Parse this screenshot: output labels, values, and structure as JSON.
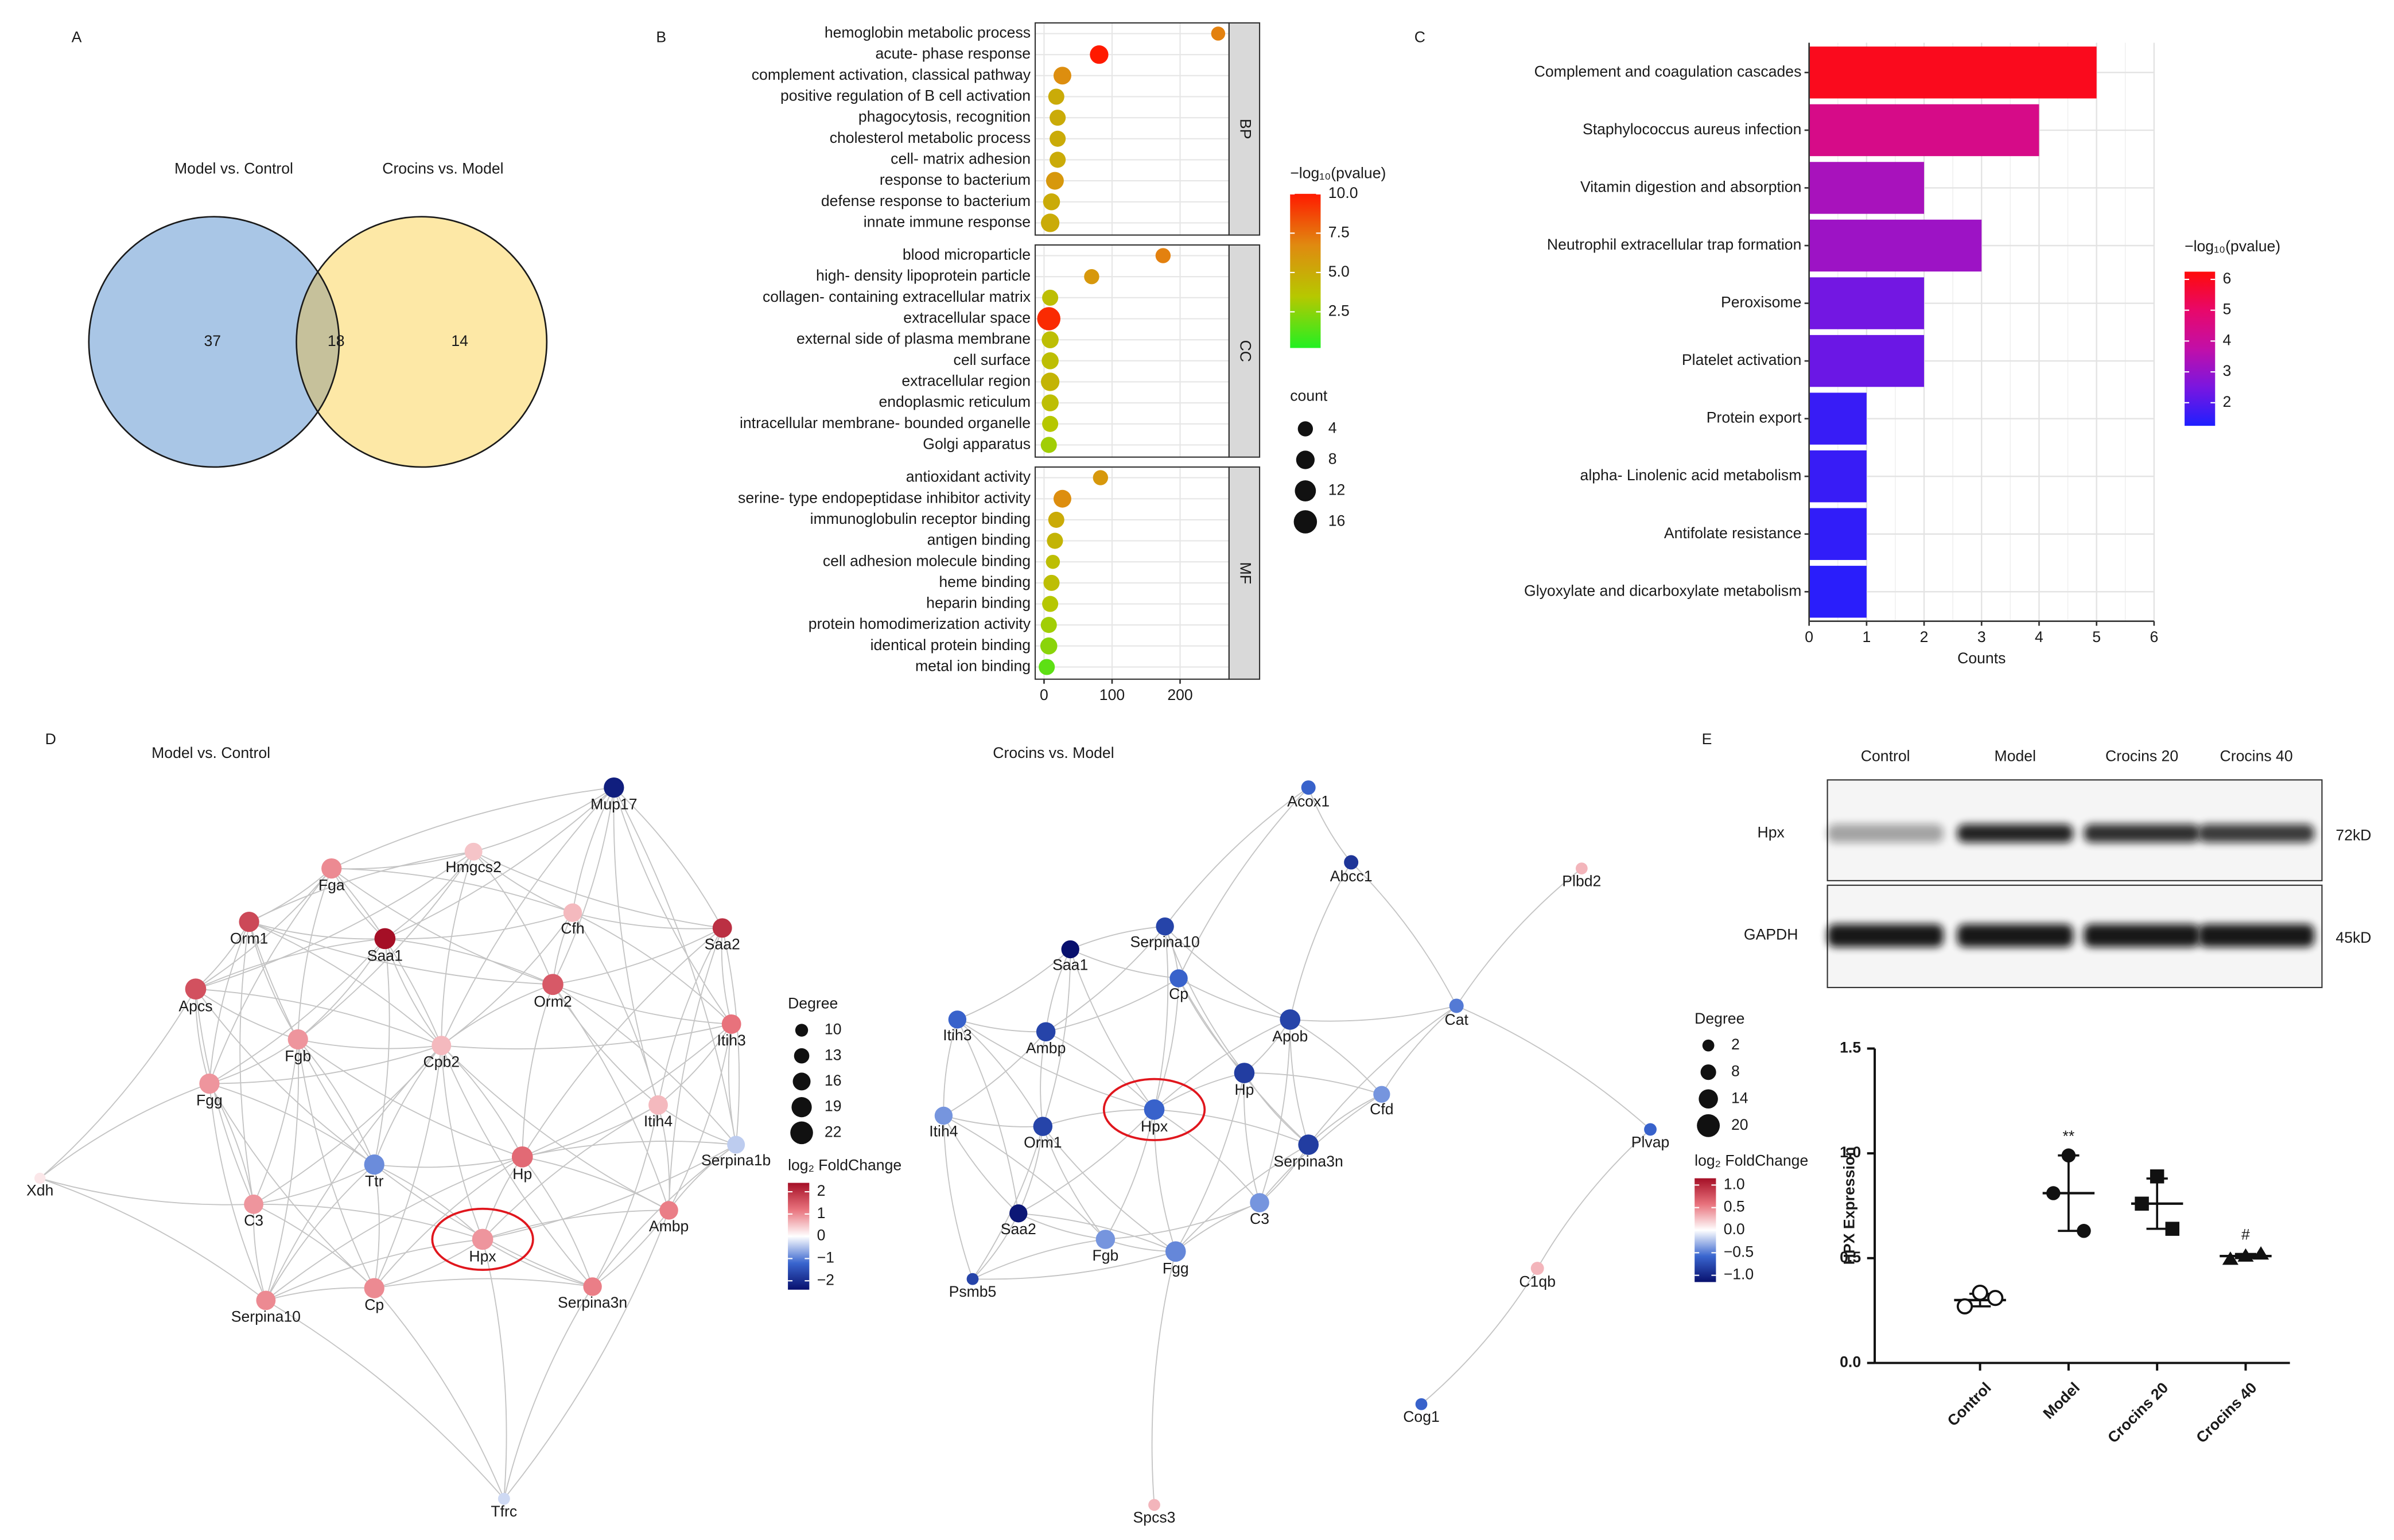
{
  "chart_data": [
    {
      "type": "venn",
      "panel": "A",
      "sets": [
        {
          "name": "Model vs. Control",
          "color": "#a9c6e6"
        },
        {
          "name": "Crocins vs. Model",
          "color": "#fde8a6"
        }
      ],
      "overlap_color": "#c6c19b",
      "values": [
        37,
        18,
        14
      ]
    },
    {
      "type": "dot",
      "panel": "B",
      "facets": [
        {
          "name": "BP",
          "categories": [
            "hemoglobin metabolic process",
            "acute- phase response",
            "complement activation, classical pathway",
            "positive regulation of B cell activation",
            "phagocytosis, recognition",
            "cholesterol metabolic process",
            "cell- matrix adhesion",
            "response to bacterium",
            "defense response to bacterium",
            "innate immune response"
          ],
          "values": [
            256,
            81,
            27,
            18,
            20,
            20,
            20,
            16,
            11,
            9
          ],
          "pvalue": [
            7,
            10,
            6.5,
            5,
            5,
            5,
            5,
            6,
            5,
            5
          ],
          "count": [
            3,
            8,
            7,
            5,
            5,
            5,
            5,
            7,
            6,
            8
          ]
        },
        {
          "name": "CC",
          "categories": [
            "blood microparticle",
            "high- density lipoprotein particle",
            "collagen- containing extracellular matrix",
            "extracellular space",
            "external side of plasma membrane",
            "cell surface",
            "extracellular region",
            "endoplasmic reticulum",
            "intracellular membrane- bounded organelle",
            "Golgi apparatus"
          ],
          "values": [
            175,
            70,
            9,
            7,
            9,
            9,
            9,
            9,
            9,
            7
          ],
          "pvalue": [
            7,
            6,
            4,
            9.5,
            4,
            4,
            4.5,
            4,
            3.5,
            3
          ],
          "count": [
            4,
            4,
            5,
            16,
            6,
            6,
            8,
            6,
            5,
            5
          ]
        },
        {
          "name": "MF",
          "categories": [
            "antioxidant activity",
            "serine- type endopeptidase inhibitor activity",
            "immunoglobulin receptor binding",
            "antigen binding",
            "cell adhesion molecule binding",
            "heme binding",
            "heparin binding",
            "protein homodimerization activity",
            "identical protein binding",
            "metal ion binding"
          ],
          "values": [
            83,
            27,
            18,
            16,
            13,
            11,
            9,
            7,
            7,
            4
          ],
          "pvalue": [
            6,
            6.5,
            5,
            4.5,
            4,
            4,
            3.5,
            3,
            2.5,
            1.5
          ],
          "count": [
            4,
            7,
            5,
            5,
            3,
            5,
            5,
            5,
            6,
            5
          ]
        }
      ],
      "xlim": [
        -13,
        272
      ],
      "xticks": [
        0,
        100,
        200
      ],
      "color_title": "−log₁₀(pvalue)",
      "color_lim": [
        0.2,
        10
      ],
      "color_ticks": [
        2.5,
        {
          "value": 5,
          "label": "5.0"
        },
        7.5,
        {
          "value": 10,
          "label": "10.0"
        }
      ],
      "colors": [
        "#22f022",
        "#b6c800",
        "#e08a10",
        "#ff1a00"
      ],
      "size_title": "count",
      "size_ticks": [
        4,
        8,
        12,
        16
      ]
    },
    {
      "type": "bar",
      "orientation": "horizontal",
      "panel": "C",
      "categories": [
        "Complement and coagulation cascades",
        "Staphylococcus aureus infection",
        "Vitamin digestion and absorption",
        "Neutrophil extracellular trap formation",
        "Peroxisome",
        "Platelet activation",
        "Protein export",
        "alpha- Linolenic acid metabolism",
        "Antifolate resistance",
        "Glyoxylate and dicarboxylate metabolism"
      ],
      "values": [
        5,
        4,
        2,
        3,
        2,
        2,
        1,
        1,
        1,
        1
      ],
      "pvalue": [
        6,
        4.4,
        3.3,
        3.1,
        2.4,
        2.3,
        1.6,
        1.6,
        1.5,
        1.4
      ],
      "xlabel": "Counts",
      "xlim": [
        0,
        6
      ],
      "xticks": [
        0,
        1,
        2,
        3,
        4,
        5,
        6
      ],
      "grid": true,
      "color_title": "−log₁₀(pvalue)",
      "color_lim": [
        1.25,
        6.25
      ],
      "color_ticks": [
        2,
        3,
        4,
        5,
        6
      ],
      "colors": [
        "#1f1fff",
        "#7a16e0",
        "#c20fa8",
        "#e8086a",
        "#ff0a0a"
      ]
    },
    {
      "type": "network",
      "panel": "D",
      "title": "Model vs. Control",
      "nodes": [
        {
          "label": "Mup17",
          "log2fc": -2.2,
          "degree": 19
        },
        {
          "label": "Fga",
          "log2fc": 1.0,
          "degree": 19
        },
        {
          "label": "Hmgcs2",
          "log2fc": 0.5,
          "degree": 16
        },
        {
          "label": "Orm1",
          "log2fc": 1.7,
          "degree": 19
        },
        {
          "label": "Saa1",
          "log2fc": 2.4,
          "degree": 20
        },
        {
          "label": "Cfh",
          "log2fc": 0.6,
          "degree": 17
        },
        {
          "label": "Saa2",
          "log2fc": 2.0,
          "degree": 18
        },
        {
          "label": "Apcs",
          "log2fc": 1.6,
          "degree": 20
        },
        {
          "label": "Orm2",
          "log2fc": 1.5,
          "degree": 20
        },
        {
          "label": "Itih3",
          "log2fc": 1.2,
          "degree": 18
        },
        {
          "label": "Fgb",
          "log2fc": 0.9,
          "degree": 19
        },
        {
          "label": "Cpb2",
          "log2fc": 0.6,
          "degree": 18
        },
        {
          "label": "Fgg",
          "log2fc": 0.9,
          "degree": 19
        },
        {
          "label": "Itih4",
          "log2fc": 0.6,
          "degree": 18
        },
        {
          "label": "Serpina1b",
          "log2fc": -0.4,
          "degree": 16
        },
        {
          "label": "Xdh",
          "log2fc": 0.2,
          "degree": 8
        },
        {
          "label": "Ttr",
          "log2fc": -0.9,
          "degree": 19
        },
        {
          "label": "Hp",
          "log2fc": 1.3,
          "degree": 20
        },
        {
          "label": "C3",
          "log2fc": 0.9,
          "degree": 18
        },
        {
          "label": "Ambp",
          "log2fc": 1.1,
          "degree": 17
        },
        {
          "label": "Hpx",
          "log2fc": 0.9,
          "degree": 20
        },
        {
          "label": "Serpina3n",
          "log2fc": 1.1,
          "degree": 17
        },
        {
          "label": "Cp",
          "log2fc": 1.0,
          "degree": 19
        },
        {
          "label": "Serpina10",
          "log2fc": 1.0,
          "degree": 18
        },
        {
          "label": "Tfrc",
          "log2fc": -0.3,
          "degree": 9
        }
      ],
      "size_title": "Degree",
      "size_ticks": [
        10,
        13,
        16,
        19,
        22
      ],
      "color_title": "log₂ FoldChange",
      "color_lim": [
        -2.4,
        2.4
      ],
      "color_ticks": [
        2,
        1,
        0,
        {
          "value": -1,
          "label": "−1"
        },
        {
          "value": -2,
          "label": "−2"
        }
      ],
      "colors": [
        "#08106e",
        "#3a66cf",
        "#ffffff",
        "#e8727c",
        "#a50f26"
      ]
    },
    {
      "type": "network",
      "title": "Crocins vs. Model",
      "nodes": [
        {
          "label": "Acox1",
          "log2fc": -0.6,
          "degree": 6
        },
        {
          "label": "Abcc1",
          "log2fc": -0.9,
          "degree": 6
        },
        {
          "label": "Plbd2",
          "log2fc": 0.3,
          "degree": 2
        },
        {
          "label": "Serpina10",
          "log2fc": -0.8,
          "degree": 12
        },
        {
          "label": "Saa1",
          "log2fc": -1.15,
          "degree": 12
        },
        {
          "label": "Cp",
          "log2fc": -0.6,
          "degree": 12
        },
        {
          "label": "Itih3",
          "log2fc": -0.6,
          "degree": 12
        },
        {
          "label": "Ambp",
          "log2fc": -0.8,
          "degree": 14
        },
        {
          "label": "Apob",
          "log2fc": -0.8,
          "degree": 16
        },
        {
          "label": "Cat",
          "log2fc": -0.5,
          "degree": 6
        },
        {
          "label": "Hp",
          "log2fc": -0.85,
          "degree": 16
        },
        {
          "label": "Hpx",
          "log2fc": -0.6,
          "degree": 16
        },
        {
          "label": "Cfd",
          "log2fc": -0.4,
          "degree": 10
        },
        {
          "label": "Itih4",
          "log2fc": -0.4,
          "degree": 12
        },
        {
          "label": "Orm1",
          "log2fc": -0.8,
          "degree": 14
        },
        {
          "label": "Serpina3n",
          "log2fc": -0.85,
          "degree": 16
        },
        {
          "label": "Plvap",
          "log2fc": -0.6,
          "degree": 3
        },
        {
          "label": "C3",
          "log2fc": -0.4,
          "degree": 14
        },
        {
          "label": "Saa2",
          "log2fc": -1.1,
          "degree": 12
        },
        {
          "label": "Fgb",
          "log2fc": -0.4,
          "degree": 14
        },
        {
          "label": "Fgg",
          "log2fc": -0.45,
          "degree": 16
        },
        {
          "label": "C1qb",
          "log2fc": 0.3,
          "degree": 4
        },
        {
          "label": "Psmb5",
          "log2fc": -0.8,
          "degree": 2
        },
        {
          "label": "Cog1",
          "log2fc": -0.6,
          "degree": 2
        },
        {
          "label": "Spcs3",
          "log2fc": 0.3,
          "degree": 2
        }
      ],
      "size_title": "Degree",
      "size_ticks": [
        2,
        8,
        14,
        20
      ],
      "color_title": "log₂ FoldChange",
      "color_lim": [
        -1.15,
        1.15
      ],
      "color_ticks": [
        {
          "value": 1,
          "label": "1.0"
        },
        0.5,
        {
          "value": 0,
          "label": "0.0"
        },
        {
          "value": -0.5,
          "label": "−0.5"
        },
        {
          "value": -1,
          "label": "−1.0"
        }
      ],
      "colors": [
        "#08106e",
        "#3a66cf",
        "#ffffff",
        "#e8727c",
        "#a50f26"
      ]
    },
    {
      "type": "blot",
      "panel": "E",
      "lanes": [
        "Control",
        "Model",
        "Crocins 20",
        "Crocins 40"
      ],
      "rows": [
        {
          "name": "Hpx",
          "size": "72kD",
          "intensity": [
            0.35,
            0.9,
            0.85,
            0.8
          ]
        },
        {
          "name": "GAPDH",
          "size": "45kD",
          "intensity": [
            0.95,
            0.95,
            0.95,
            0.95
          ]
        }
      ]
    },
    {
      "type": "strip",
      "categories": [
        "Control",
        "Model",
        "Crocins 20",
        "Crocins 40"
      ],
      "markers": [
        "open-circle",
        "circle",
        "square",
        "triangle"
      ],
      "points": [
        [
          0.27,
          0.335,
          0.31
        ],
        [
          0.81,
          0.99,
          0.63
        ],
        [
          0.76,
          0.89,
          0.64
        ],
        [
          0.495,
          0.51,
          0.52
        ]
      ],
      "mean": [
        0.3,
        0.81,
        0.76,
        0.51
      ],
      "error": [
        0.03,
        0.18,
        0.12,
        0.01
      ],
      "ylabel": "HPX Expression",
      "ylim": [
        0,
        1.5
      ],
      "yticks": [
        {
          "value": 0,
          "label": "0.0"
        },
        {
          "value": 0.5,
          "label": "0.5"
        },
        {
          "value": 1,
          "label": "1.0"
        },
        {
          "value": 1.5,
          "label": "1.5"
        }
      ],
      "annotations": [
        {
          "category": "Model",
          "text": "**"
        },
        {
          "category": "Crocins 40",
          "text": "#"
        }
      ]
    }
  ]
}
